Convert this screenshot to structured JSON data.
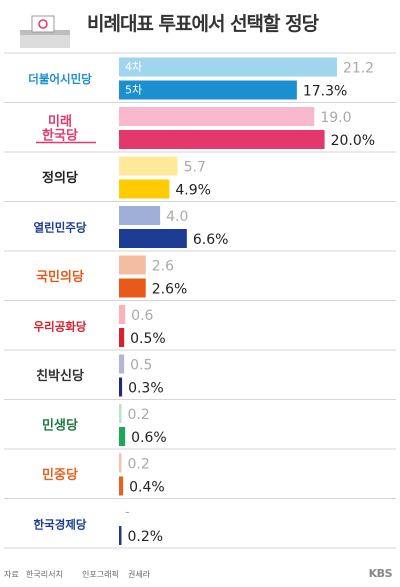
{
  "title": "비례대표 투표에서 선택할 정당",
  "footer": {
    "source_label": "자료",
    "source": "한국리서치",
    "infographic_label": "인포그래픽",
    "infographic": "권세라",
    "brand": "KBS"
  },
  "chart_data": {
    "type": "bar",
    "orientation": "horizontal",
    "title": "비례대표 투표에서 선택할 정당",
    "xlim": [
      0,
      22
    ],
    "series": [
      {
        "name": "4차",
        "values": [
          21.2,
          19.0,
          5.7,
          4.0,
          2.6,
          0.6,
          0.5,
          0.2,
          0.2,
          null
        ]
      },
      {
        "name": "5차",
        "values": [
          17.3,
          20.0,
          4.9,
          6.6,
          2.6,
          0.5,
          0.3,
          0.6,
          0.4,
          0.2
        ]
      }
    ],
    "labels_previous": [
      "21.2",
      "19.0",
      "5.7",
      "4.0",
      "2.6",
      "0.6",
      "0.5",
      "0.2",
      "0.2",
      "-"
    ],
    "labels_current": [
      "17.3%",
      "20.0%",
      "4.9%",
      "6.6%",
      "2.6%",
      "0.5%",
      "0.3%",
      "0.6%",
      "0.4%",
      "0.2%"
    ],
    "parties": [
      {
        "name": "더불어시민당",
        "logo_lines": [
          "더불어시민당"
        ],
        "color_light": "#9fd6ee",
        "color_dark": "#1b8fd0",
        "text_color": "#1b8fd0"
      },
      {
        "name": "미래한국당",
        "logo_lines": [
          "미래",
          "한국당"
        ],
        "color_light": "#f9b8cd",
        "color_dark": "#e4386c",
        "text_color": "#e4386c"
      },
      {
        "name": "정의당",
        "logo_lines": [
          "정의당"
        ],
        "color_light": "#ffe99a",
        "color_dark": "#ffcc00",
        "text_color": "#222222"
      },
      {
        "name": "열린민주당",
        "logo_lines": [
          "열린민주당"
        ],
        "color_light": "#9fb0d8",
        "color_dark": "#1c3c93",
        "text_color": "#1c3c93"
      },
      {
        "name": "국민의당",
        "logo_lines": [
          "국민의당"
        ],
        "color_light": "#f4bca0",
        "color_dark": "#e85a1a",
        "text_color": "#e85a1a"
      },
      {
        "name": "우리공화당",
        "logo_lines": [
          "우리공화당"
        ],
        "color_light": "#f6b3ba",
        "color_dark": "#d8202f",
        "text_color": "#d8202f"
      },
      {
        "name": "친박신당",
        "logo_lines": [
          "친박신당"
        ],
        "color_light": "#b3b6d6",
        "color_dark": "#1f2a7a",
        "text_color": "#333333"
      },
      {
        "name": "민생당",
        "logo_lines": [
          "민생당"
        ],
        "color_light": "#b4e6c8",
        "color_dark": "#1fa65a",
        "text_color": "#1f7a45"
      },
      {
        "name": "민중당",
        "logo_lines": [
          "민중당"
        ],
        "color_light": "#f5c3aa",
        "color_dark": "#e8621f",
        "text_color": "#e8621f"
      },
      {
        "name": "한국경제당",
        "logo_lines": [
          "한국경제당"
        ],
        "color_light": "#cfd7ea",
        "color_dark": "#1c3c93",
        "text_color": "#1c3c93"
      }
    ]
  }
}
